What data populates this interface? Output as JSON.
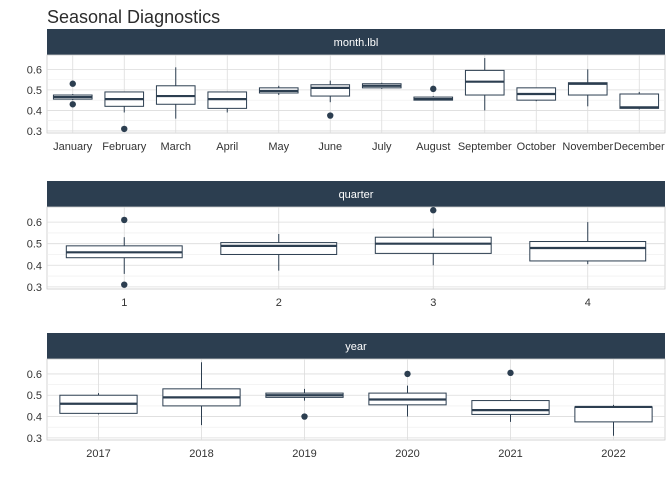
{
  "title": "Seasonal Diagnostics",
  "colors": {
    "strip": "#2c3e50",
    "box": "#2c3e50",
    "fill": "#ffffff"
  },
  "chart_data": [
    {
      "type": "boxplot",
      "facet": "month.lbl",
      "ylim": [
        0.29,
        0.67
      ],
      "yticks": [
        0.3,
        0.4,
        0.5,
        0.6
      ],
      "ytick_labels": [
        "0.3",
        "0.4",
        "0.5",
        "0.6"
      ],
      "grid": true,
      "categories": [
        "January",
        "February",
        "March",
        "April",
        "May",
        "June",
        "July",
        "August",
        "September",
        "October",
        "November",
        "December"
      ],
      "boxes": [
        {
          "min": 0.45,
          "q1": 0.455,
          "median": 0.465,
          "q3": 0.475,
          "max": 0.48,
          "outliers": [
            0.53,
            0.43
          ]
        },
        {
          "min": 0.39,
          "q1": 0.42,
          "median": 0.455,
          "q3": 0.49,
          "max": 0.49,
          "outliers": [
            0.31
          ]
        },
        {
          "min": 0.36,
          "q1": 0.43,
          "median": 0.47,
          "q3": 0.52,
          "max": 0.61,
          "outliers": []
        },
        {
          "min": 0.39,
          "q1": 0.41,
          "median": 0.455,
          "q3": 0.49,
          "max": 0.49,
          "outliers": []
        },
        {
          "min": 0.475,
          "q1": 0.485,
          "median": 0.495,
          "q3": 0.51,
          "max": 0.52,
          "outliers": []
        },
        {
          "min": 0.44,
          "q1": 0.47,
          "median": 0.51,
          "q3": 0.525,
          "max": 0.545,
          "outliers": [
            0.375
          ]
        },
        {
          "min": 0.505,
          "q1": 0.51,
          "median": 0.52,
          "q3": 0.53,
          "max": 0.535,
          "outliers": []
        },
        {
          "min": 0.45,
          "q1": 0.45,
          "median": 0.455,
          "q3": 0.465,
          "max": 0.47,
          "outliers": [
            0.505
          ]
        },
        {
          "min": 0.4,
          "q1": 0.475,
          "median": 0.54,
          "q3": 0.595,
          "max": 0.655,
          "outliers": []
        },
        {
          "min": 0.445,
          "q1": 0.45,
          "median": 0.48,
          "q3": 0.51,
          "max": 0.51,
          "outliers": []
        },
        {
          "min": 0.42,
          "q1": 0.475,
          "median": 0.53,
          "q3": 0.535,
          "max": 0.6,
          "outliers": []
        },
        {
          "min": 0.405,
          "q1": 0.41,
          "median": 0.415,
          "q3": 0.48,
          "max": 0.49,
          "outliers": []
        }
      ]
    },
    {
      "type": "boxplot",
      "facet": "quarter",
      "ylim": [
        0.29,
        0.67
      ],
      "yticks": [
        0.3,
        0.4,
        0.5,
        0.6
      ],
      "ytick_labels": [
        "0.3",
        "0.4",
        "0.5",
        "0.6"
      ],
      "grid": true,
      "categories": [
        "1",
        "2",
        "3",
        "4"
      ],
      "boxes": [
        {
          "min": 0.36,
          "q1": 0.435,
          "median": 0.46,
          "q3": 0.49,
          "max": 0.53,
          "outliers": [
            0.61,
            0.31
          ]
        },
        {
          "min": 0.375,
          "q1": 0.45,
          "median": 0.49,
          "q3": 0.505,
          "max": 0.545,
          "outliers": []
        },
        {
          "min": 0.4,
          "q1": 0.455,
          "median": 0.5,
          "q3": 0.53,
          "max": 0.57,
          "outliers": [
            0.655
          ]
        },
        {
          "min": 0.405,
          "q1": 0.42,
          "median": 0.48,
          "q3": 0.51,
          "max": 0.6,
          "outliers": []
        }
      ]
    },
    {
      "type": "boxplot",
      "facet": "year",
      "ylim": [
        0.29,
        0.67
      ],
      "yticks": [
        0.3,
        0.4,
        0.5,
        0.6
      ],
      "ytick_labels": [
        "0.3",
        "0.4",
        "0.5",
        "0.6"
      ],
      "grid": true,
      "categories": [
        "2017",
        "2018",
        "2019",
        "2020",
        "2021",
        "2022"
      ],
      "boxes": [
        {
          "min": 0.41,
          "q1": 0.415,
          "median": 0.46,
          "q3": 0.5,
          "max": 0.51,
          "outliers": []
        },
        {
          "min": 0.36,
          "q1": 0.45,
          "median": 0.49,
          "q3": 0.53,
          "max": 0.655,
          "outliers": []
        },
        {
          "min": 0.475,
          "q1": 0.49,
          "median": 0.5,
          "q3": 0.51,
          "max": 0.53,
          "outliers": [
            0.4
          ]
        },
        {
          "min": 0.4,
          "q1": 0.455,
          "median": 0.48,
          "q3": 0.51,
          "max": 0.545,
          "outliers": [
            0.6
          ]
        },
        {
          "min": 0.375,
          "q1": 0.41,
          "median": 0.43,
          "q3": 0.475,
          "max": 0.48,
          "outliers": [
            0.605
          ]
        },
        {
          "min": 0.31,
          "q1": 0.375,
          "median": 0.445,
          "q3": 0.445,
          "max": 0.455,
          "outliers": []
        }
      ]
    }
  ]
}
